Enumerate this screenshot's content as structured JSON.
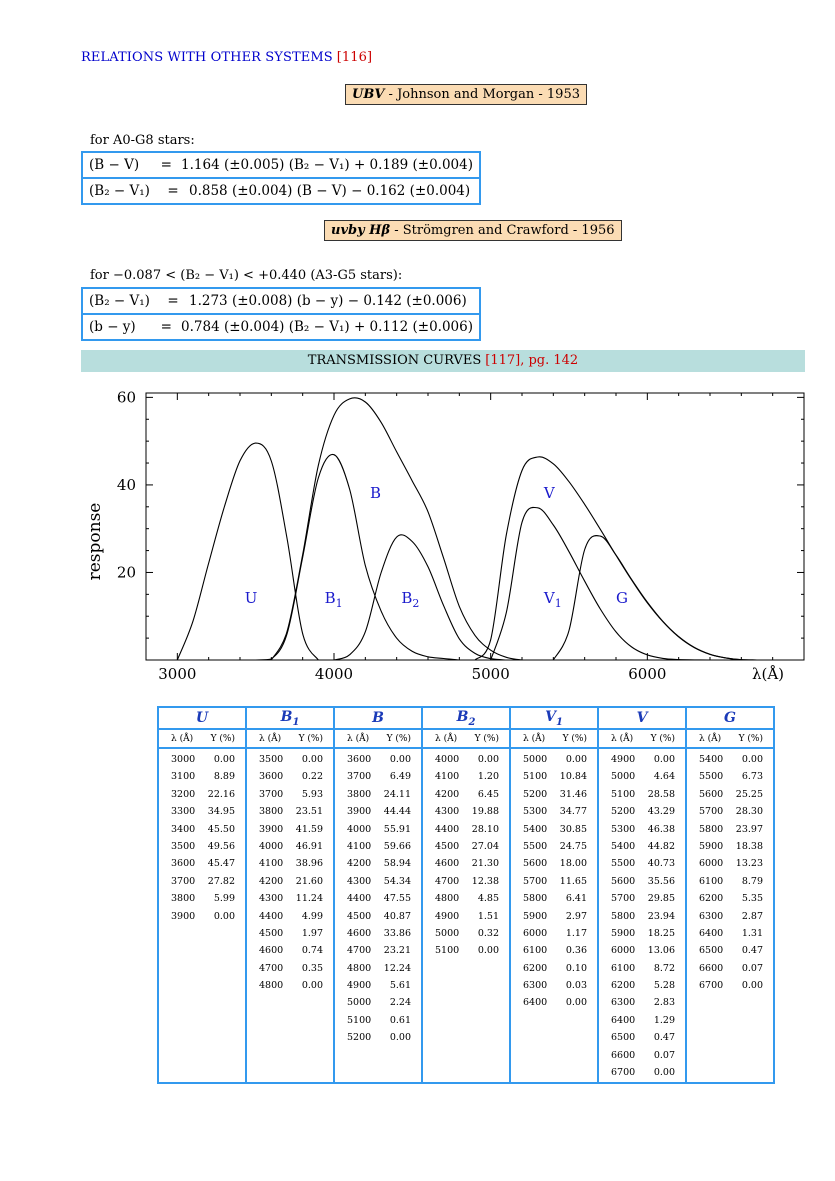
{
  "heading": {
    "title": "RELATIONS WITH OTHER SYSTEMS",
    "ref": "[116]"
  },
  "system1": {
    "name": "UBV",
    "desc": " - Johnson and Morgan - 1953"
  },
  "condition1": "for A0-G8 stars:",
  "eq1": [
    {
      "lhs": "(B − V)",
      "eq": "=",
      "rhs": "1.164 (±0.005) (B₂ − V₁) + 0.189 (±0.004)"
    },
    {
      "lhs": "(B₂ − V₁)",
      "eq": "=",
      "rhs": "0.858 (±0.004) (B − V) − 0.162 (±0.004)"
    }
  ],
  "system2": {
    "name": "uvby Hβ",
    "desc": " - Strömgren and Crawford - 1956"
  },
  "condition2": "for −0.087 < (B₂ − V₁) < +0.440 (A3-G5 stars):",
  "eq2": [
    {
      "lhs": "(B₂ − V₁)",
      "eq": "=",
      "rhs": "1.273 (±0.008) (b − y) − 0.142 (±0.006)"
    },
    {
      "lhs": "(b − y)",
      "eq": "=",
      "rhs": "0.784 (±0.004) (B₂ − V₁) + 0.112 (±0.006)"
    }
  ],
  "banner": {
    "title": "TRANSMISSION CURVES",
    "ref": "[117], pg. 142"
  },
  "chart_data": {
    "type": "line",
    "title": "",
    "xlabel": "λ(Å)",
    "ylabel": "response",
    "xlim": [
      2800,
      7000
    ],
    "ylim": [
      0,
      61
    ],
    "xticks": [
      "3000",
      "4000",
      "5000",
      "6000"
    ],
    "yticks": [
      "20",
      "40",
      "60"
    ],
    "series": [
      {
        "name": "U",
        "x": [
          3000,
          3100,
          3200,
          3300,
          3400,
          3500,
          3600,
          3700,
          3800,
          3900
        ],
        "y": [
          0.0,
          8.89,
          22.16,
          34.95,
          45.5,
          49.56,
          45.47,
          27.82,
          5.99,
          0.0
        ]
      },
      {
        "name": "B1",
        "x": [
          3500,
          3600,
          3700,
          3800,
          3900,
          4000,
          4100,
          4200,
          4300,
          4400,
          4500,
          4600,
          4700,
          4800
        ],
        "y": [
          0.0,
          0.22,
          5.93,
          23.51,
          41.59,
          46.91,
          38.96,
          21.6,
          11.24,
          4.99,
          1.97,
          0.74,
          0.35,
          0.0
        ]
      },
      {
        "name": "B",
        "x": [
          3600,
          3700,
          3800,
          3900,
          4000,
          4100,
          4200,
          4300,
          4400,
          4500,
          4600,
          4700,
          4800,
          4900,
          5000,
          5100,
          5200
        ],
        "y": [
          0.0,
          6.49,
          24.11,
          44.44,
          55.91,
          59.66,
          58.94,
          54.34,
          47.55,
          40.87,
          33.86,
          23.21,
          12.24,
          5.61,
          2.24,
          0.61,
          0.0
        ]
      },
      {
        "name": "B2",
        "x": [
          4000,
          4100,
          4200,
          4300,
          4400,
          4500,
          4600,
          4700,
          4800,
          4900,
          5000,
          5100
        ],
        "y": [
          0.0,
          1.2,
          6.45,
          19.88,
          28.1,
          27.04,
          21.3,
          12.38,
          4.85,
          1.51,
          0.32,
          0.0
        ]
      },
      {
        "name": "V1",
        "x": [
          5000,
          5100,
          5200,
          5300,
          5400,
          5500,
          5600,
          5700,
          5800,
          5900,
          6000,
          6100,
          6200,
          6300,
          6400
        ],
        "y": [
          0.0,
          10.84,
          31.46,
          34.77,
          30.85,
          24.75,
          18.0,
          11.65,
          6.41,
          2.97,
          1.17,
          0.36,
          0.1,
          0.03,
          0.0
        ]
      },
      {
        "name": "V",
        "x": [
          4900,
          5000,
          5100,
          5200,
          5300,
          5400,
          5500,
          5600,
          5700,
          5800,
          5900,
          6000,
          6100,
          6200,
          6300,
          6400,
          6500,
          6600,
          6700
        ],
        "y": [
          0.0,
          4.64,
          28.58,
          43.29,
          46.38,
          44.82,
          40.73,
          35.56,
          29.85,
          23.94,
          18.25,
          13.06,
          8.72,
          5.28,
          2.83,
          1.29,
          0.47,
          0.07,
          0.0
        ]
      },
      {
        "name": "G",
        "x": [
          5400,
          5500,
          5600,
          5700,
          5800,
          5900,
          6000,
          6100,
          6200,
          6300,
          6400,
          6500,
          6600,
          6700
        ],
        "y": [
          0.0,
          6.73,
          25.25,
          28.3,
          23.97,
          18.38,
          13.23,
          8.79,
          5.35,
          2.87,
          1.31,
          0.47,
          0.07,
          0.0
        ]
      }
    ],
    "curve_labels": [
      {
        "text": "U",
        "sub": "",
        "x": 3430,
        "y": 13
      },
      {
        "text": "B",
        "sub": "1",
        "x": 3940,
        "y": 13
      },
      {
        "text": "B",
        "sub": "",
        "x": 4230,
        "y": 37
      },
      {
        "text": "B",
        "sub": "2",
        "x": 4430,
        "y": 13
      },
      {
        "text": "V",
        "sub": "",
        "x": 5340,
        "y": 37
      },
      {
        "text": "V",
        "sub": "1",
        "x": 5340,
        "y": 13
      },
      {
        "text": "G",
        "sub": "",
        "x": 5800,
        "y": 13
      }
    ],
    "label_color": "#1a1acc"
  },
  "table": {
    "subheader": {
      "lambda": "λ (Å)",
      "tau": "Υ (%)"
    },
    "columns": [
      {
        "name": "U",
        "sub": "",
        "rows": [
          [
            "3000",
            "0.00"
          ],
          [
            "3100",
            "8.89"
          ],
          [
            "3200",
            "22.16"
          ],
          [
            "3300",
            "34.95"
          ],
          [
            "3400",
            "45.50"
          ],
          [
            "3500",
            "49.56"
          ],
          [
            "3600",
            "45.47"
          ],
          [
            "3700",
            "27.82"
          ],
          [
            "3800",
            "5.99"
          ],
          [
            "3900",
            "0.00"
          ]
        ]
      },
      {
        "name": "B",
        "sub": "1",
        "rows": [
          [
            "3500",
            "0.00"
          ],
          [
            "3600",
            "0.22"
          ],
          [
            "3700",
            "5.93"
          ],
          [
            "3800",
            "23.51"
          ],
          [
            "3900",
            "41.59"
          ],
          [
            "4000",
            "46.91"
          ],
          [
            "4100",
            "38.96"
          ],
          [
            "4200",
            "21.60"
          ],
          [
            "4300",
            "11.24"
          ],
          [
            "4400",
            "4.99"
          ],
          [
            "4500",
            "1.97"
          ],
          [
            "4600",
            "0.74"
          ],
          [
            "4700",
            "0.35"
          ],
          [
            "4800",
            "0.00"
          ]
        ]
      },
      {
        "name": "B",
        "sub": "",
        "rows": [
          [
            "3600",
            "0.00"
          ],
          [
            "3700",
            "6.49"
          ],
          [
            "3800",
            "24.11"
          ],
          [
            "3900",
            "44.44"
          ],
          [
            "4000",
            "55.91"
          ],
          [
            "4100",
            "59.66"
          ],
          [
            "4200",
            "58.94"
          ],
          [
            "4300",
            "54.34"
          ],
          [
            "4400",
            "47.55"
          ],
          [
            "4500",
            "40.87"
          ],
          [
            "4600",
            "33.86"
          ],
          [
            "4700",
            "23.21"
          ],
          [
            "4800",
            "12.24"
          ],
          [
            "4900",
            "5.61"
          ],
          [
            "5000",
            "2.24"
          ],
          [
            "5100",
            "0.61"
          ],
          [
            "5200",
            "0.00"
          ]
        ]
      },
      {
        "name": "B",
        "sub": "2",
        "rows": [
          [
            "4000",
            "0.00"
          ],
          [
            "4100",
            "1.20"
          ],
          [
            "4200",
            "6.45"
          ],
          [
            "4300",
            "19.88"
          ],
          [
            "4400",
            "28.10"
          ],
          [
            "4500",
            "27.04"
          ],
          [
            "4600",
            "21.30"
          ],
          [
            "4700",
            "12.38"
          ],
          [
            "4800",
            "4.85"
          ],
          [
            "4900",
            "1.51"
          ],
          [
            "5000",
            "0.32"
          ],
          [
            "5100",
            "0.00"
          ]
        ]
      },
      {
        "name": "V",
        "sub": "1",
        "rows": [
          [
            "5000",
            "0.00"
          ],
          [
            "5100",
            "10.84"
          ],
          [
            "5200",
            "31.46"
          ],
          [
            "5300",
            "34.77"
          ],
          [
            "5400",
            "30.85"
          ],
          [
            "5500",
            "24.75"
          ],
          [
            "5600",
            "18.00"
          ],
          [
            "5700",
            "11.65"
          ],
          [
            "5800",
            "6.41"
          ],
          [
            "5900",
            "2.97"
          ],
          [
            "6000",
            "1.17"
          ],
          [
            "6100",
            "0.36"
          ],
          [
            "6200",
            "0.10"
          ],
          [
            "6300",
            "0.03"
          ],
          [
            "6400",
            "0.00"
          ]
        ]
      },
      {
        "name": "V",
        "sub": "",
        "rows": [
          [
            "4900",
            "0.00"
          ],
          [
            "5000",
            "4.64"
          ],
          [
            "5100",
            "28.58"
          ],
          [
            "5200",
            "43.29"
          ],
          [
            "5300",
            "46.38"
          ],
          [
            "5400",
            "44.82"
          ],
          [
            "5500",
            "40.73"
          ],
          [
            "5600",
            "35.56"
          ],
          [
            "5700",
            "29.85"
          ],
          [
            "5800",
            "23.94"
          ],
          [
            "5900",
            "18.25"
          ],
          [
            "6000",
            "13.06"
          ],
          [
            "6100",
            "8.72"
          ],
          [
            "6200",
            "5.28"
          ],
          [
            "6300",
            "2.83"
          ],
          [
            "6400",
            "1.29"
          ],
          [
            "6500",
            "0.47"
          ],
          [
            "6600",
            "0.07"
          ],
          [
            "6700",
            "0.00"
          ]
        ]
      },
      {
        "name": "G",
        "sub": "",
        "rows": [
          [
            "5400",
            "0.00"
          ],
          [
            "5500",
            "6.73"
          ],
          [
            "5600",
            "25.25"
          ],
          [
            "5700",
            "28.30"
          ],
          [
            "5800",
            "23.97"
          ],
          [
            "5900",
            "18.38"
          ],
          [
            "6000",
            "13.23"
          ],
          [
            "6100",
            "8.79"
          ],
          [
            "6200",
            "5.35"
          ],
          [
            "6300",
            "2.87"
          ],
          [
            "6400",
            "1.31"
          ],
          [
            "6500",
            "0.47"
          ],
          [
            "6600",
            "0.07"
          ],
          [
            "6700",
            "0.00"
          ]
        ]
      }
    ]
  }
}
